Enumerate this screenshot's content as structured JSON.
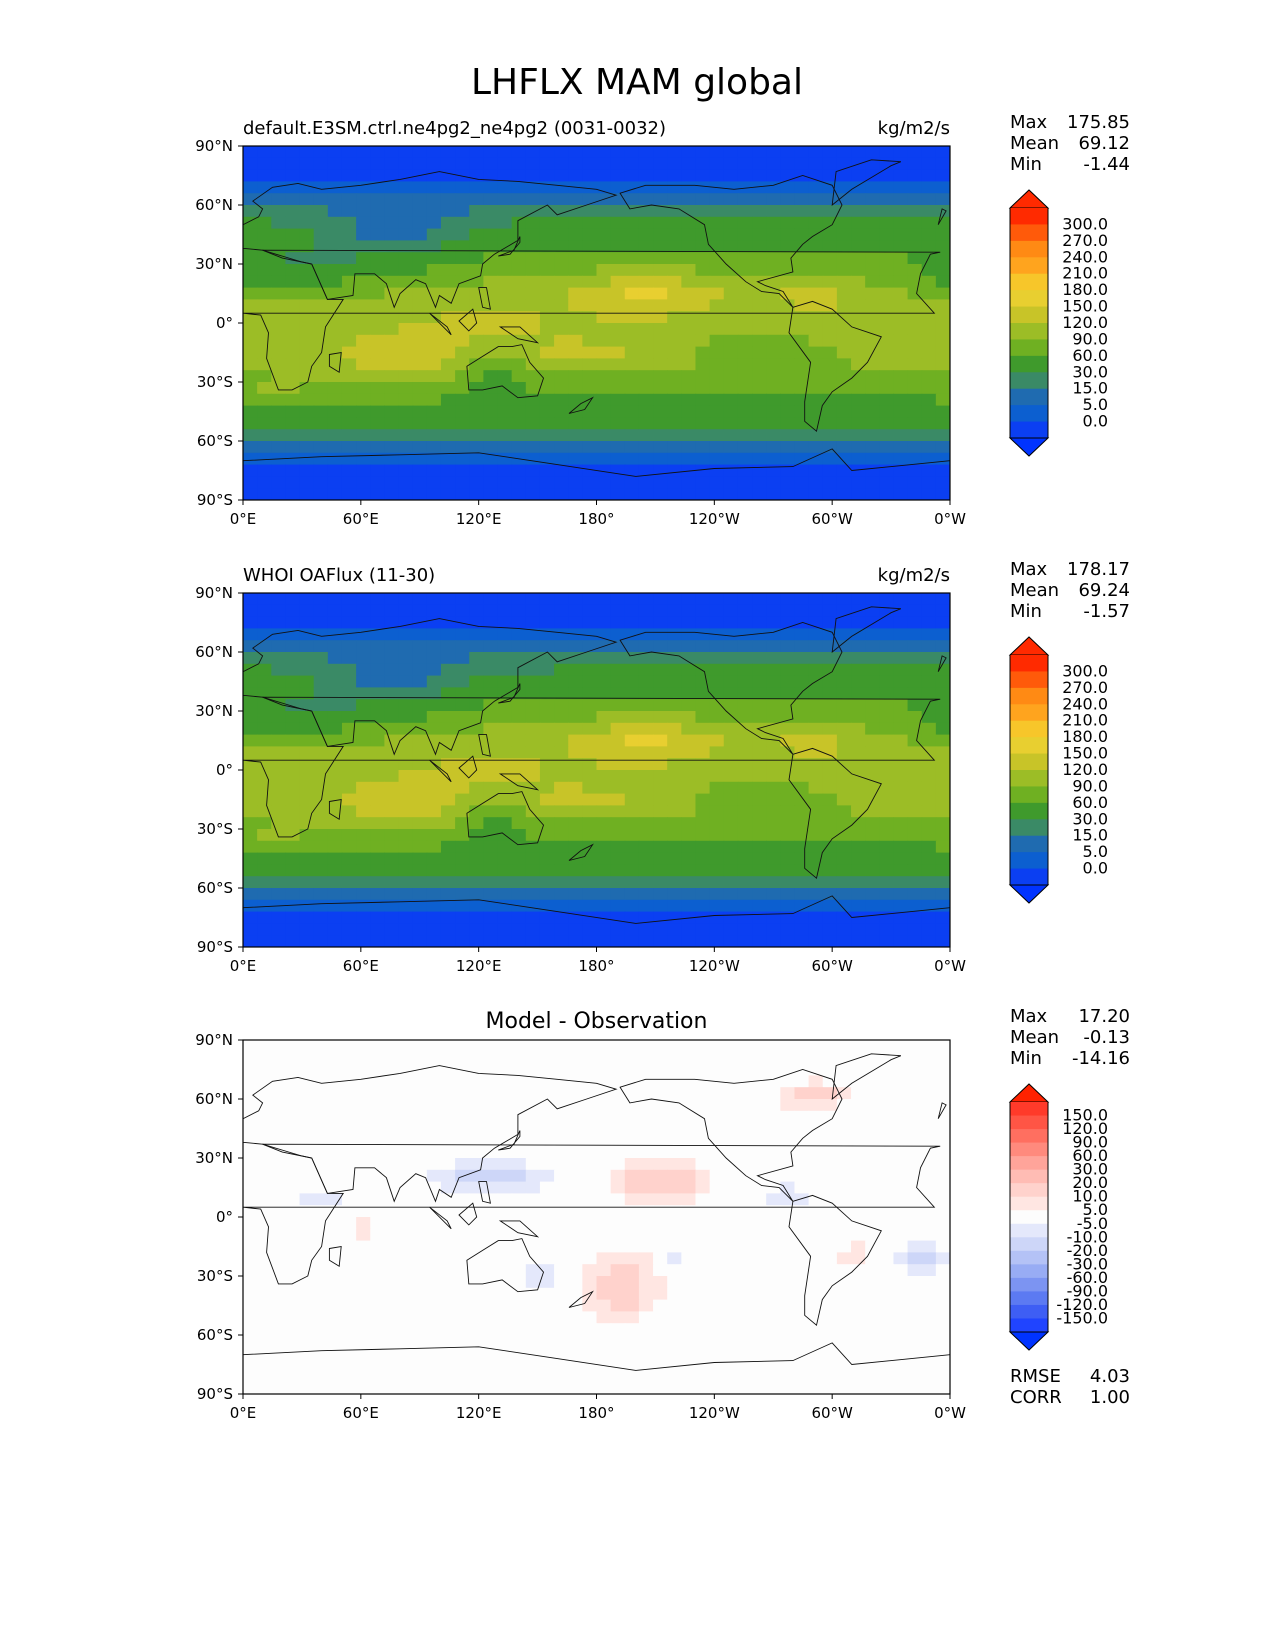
{
  "figure_title": "LHFLX MAM global",
  "chart_data": [
    {
      "type": "heatmap",
      "panel": "test",
      "title_left": "default.E3SM.ctrl.ne4pg2_ne4pg2 (0031-0032)",
      "title_right": "kg/m2/s",
      "x_ticks": [
        "0°E",
        "60°E",
        "120°E",
        "180°",
        "120°W",
        "60°W",
        "0°W"
      ],
      "y_ticks": [
        "90°N",
        "60°N",
        "30°N",
        "0°",
        "30°S",
        "60°S",
        "90°S"
      ],
      "xlim": [
        0,
        360
      ],
      "ylim": [
        -90,
        90
      ],
      "stats": [
        {
          "label": "Max",
          "value": "175.85"
        },
        {
          "label": "Mean",
          "value": "69.12"
        },
        {
          "label": "Min",
          "value": "-1.44"
        }
      ],
      "colorbar_labels": [
        "300.0",
        "270.0",
        "240.0",
        "210.0",
        "180.0",
        "150.0",
        "120.0",
        "90.0",
        "60.0",
        "30.0",
        "15.0",
        "5.0",
        "0.0"
      ],
      "colorbar_colors": [
        "#ff2a00",
        "#ff5a0a",
        "#ff8a14",
        "#ffa41e",
        "#f7c62a",
        "#e8cf30",
        "#c8c428",
        "#9cbd26",
        "#6fb022",
        "#3f9a2c",
        "#3a8a66",
        "#1f6bb0",
        "#0c5fd0",
        "#0b3ff2"
      ],
      "colorbar_extend_low": "#0033ff",
      "colorbar_extend_high": "#ff2a00"
    },
    {
      "type": "heatmap",
      "panel": "reference",
      "title_left": "WHOI OAFlux (11-30)",
      "title_right": "kg/m2/s",
      "x_ticks": [
        "0°E",
        "60°E",
        "120°E",
        "180°",
        "120°W",
        "60°W",
        "0°W"
      ],
      "y_ticks": [
        "90°N",
        "60°N",
        "30°N",
        "0°",
        "30°S",
        "60°S",
        "90°S"
      ],
      "xlim": [
        0,
        360
      ],
      "ylim": [
        -90,
        90
      ],
      "stats": [
        {
          "label": "Max",
          "value": "178.17"
        },
        {
          "label": "Mean",
          "value": "69.24"
        },
        {
          "label": "Min",
          "value": "-1.57"
        }
      ],
      "colorbar_labels": [
        "300.0",
        "270.0",
        "240.0",
        "210.0",
        "180.0",
        "150.0",
        "120.0",
        "90.0",
        "60.0",
        "30.0",
        "15.0",
        "5.0",
        "0.0"
      ],
      "colorbar_colors": [
        "#ff2a00",
        "#ff5a0a",
        "#ff8a14",
        "#ffa41e",
        "#f7c62a",
        "#e8cf30",
        "#c8c428",
        "#9cbd26",
        "#6fb022",
        "#3f9a2c",
        "#3a8a66",
        "#1f6bb0",
        "#0c5fd0",
        "#0b3ff2"
      ],
      "colorbar_extend_low": "#0033ff",
      "colorbar_extend_high": "#ff2a00"
    },
    {
      "type": "heatmap",
      "panel": "difference",
      "title_center": "Model - Observation",
      "x_ticks": [
        "0°E",
        "60°E",
        "120°E",
        "180°",
        "120°W",
        "60°W",
        "0°W"
      ],
      "y_ticks": [
        "90°N",
        "60°N",
        "30°N",
        "0°",
        "30°S",
        "60°S",
        "90°S"
      ],
      "xlim": [
        0,
        360
      ],
      "ylim": [
        -90,
        90
      ],
      "stats": [
        {
          "label": "Max",
          "value": "17.20"
        },
        {
          "label": "Mean",
          "value": "-0.13"
        },
        {
          "label": "Min",
          "value": "-14.16"
        }
      ],
      "colorbar_labels": [
        "150.0",
        "120.0",
        "90.0",
        "60.0",
        "30.0",
        "20.0",
        "10.0",
        "5.0",
        "-5.0",
        "-10.0",
        "-20.0",
        "-30.0",
        "-60.0",
        "-90.0",
        "-120.0",
        "-150.0"
      ],
      "colorbar_colors": [
        "#ff3a2a",
        "#ff5545",
        "#ff6f60",
        "#ff8a7d",
        "#ffa49a",
        "#ffbcb4",
        "#ffd2cc",
        "#ffe6e2",
        "#fdfdfd",
        "#e4e8fb",
        "#cdd6f8",
        "#b4c2f6",
        "#98acf4",
        "#7c94f2",
        "#5c7af2",
        "#3e5ef4",
        "#2044ff"
      ],
      "colorbar_extend_low": "#0033ff",
      "colorbar_extend_high": "#ff2200",
      "footer_stats": [
        {
          "label": "RMSE",
          "value": "4.03"
        },
        {
          "label": "CORR",
          "value": "1.00"
        }
      ]
    }
  ]
}
